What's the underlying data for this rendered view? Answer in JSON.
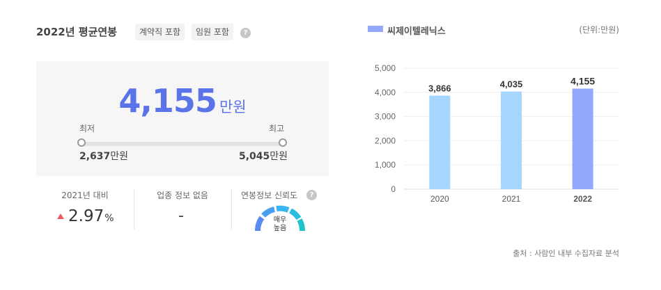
{
  "header": {
    "title": "2022년 평균연봉",
    "tags": [
      "계약직 포함",
      "임원 포함"
    ],
    "help_glyph": "?"
  },
  "salary": {
    "value": "4,155",
    "unit": "만원",
    "min_label": "최저",
    "max_label": "최고",
    "min_value": "2,637",
    "max_value": "5,045",
    "value_unit": "만원"
  },
  "stats": {
    "growth_title": "2021년 대비",
    "growth_value": "2.97",
    "growth_unit": "%",
    "growth_direction": "up",
    "industry_title": "업종 정보 없음",
    "industry_value": "-",
    "reliability_title": "연봉정보 신뢰도",
    "reliability_level_line1": "매우",
    "reliability_level_line2": "높음",
    "reliability_fraction": 1.0
  },
  "chart_meta": {
    "legend": "씨제이텔레닉스",
    "unit_note": "(단위:만원)",
    "source_note": "출처 : 사람인 내부 수집자료 분석"
  },
  "colors": {
    "accent": "#5b73e8",
    "bar": "#a6d6ff",
    "bar_highlight": "#94a8fb",
    "up": "#ef5b5b",
    "gauge": [
      "#5a8cf0",
      "#38b6f1",
      "#1fc4c9"
    ]
  },
  "chart_data": {
    "type": "bar",
    "categories": [
      "2020",
      "2021",
      "2022"
    ],
    "values": [
      3866,
      4035,
      4155
    ],
    "value_labels": [
      "3,866",
      "4,035",
      "4,155"
    ],
    "highlight_index": 2,
    "ylim": [
      0,
      5000
    ],
    "yticks": [
      0,
      1000,
      2000,
      3000,
      4000,
      5000
    ],
    "ytick_labels": [
      "0",
      "1,000",
      "2,000",
      "3,000",
      "4,000",
      "5,000"
    ],
    "series": [
      {
        "name": "씨제이텔레닉스",
        "values": [
          3866,
          4035,
          4155
        ]
      }
    ],
    "grid": true,
    "legend_position": "top-left"
  }
}
